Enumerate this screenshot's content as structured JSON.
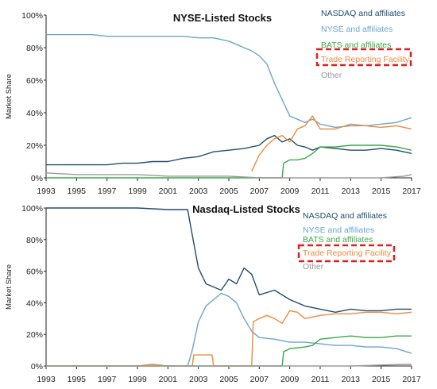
{
  "chart_data": [
    {
      "type": "line",
      "title": "NYSE-Listed  Stocks",
      "ylabel": "Market Share",
      "xlabel": "",
      "xlim": [
        1993,
        2017
      ],
      "ylim": [
        0,
        100
      ],
      "x_ticks": [
        "1993",
        "1995",
        "1997",
        "1999",
        "2001",
        "2003",
        "2005",
        "2007",
        "2009",
        "2011",
        "2013",
        "2015",
        "2017"
      ],
      "y_ticks": [
        "0%",
        "20%",
        "40%",
        "60%",
        "80%",
        "100%"
      ],
      "legend_position": "top-right",
      "highlighted_legend_entry": "Trade Reporting Facility",
      "series": [
        {
          "name": "NASDAQ and affiliates",
          "color": "#1f4e6b",
          "x": [
            1993,
            1994,
            1995,
            1996,
            1997,
            1998,
            1999,
            2000,
            2001,
            2002,
            2003,
            2004,
            2005,
            2006,
            2007,
            2007.5,
            2008,
            2008.5,
            2009,
            2009.5,
            2010,
            2010.5,
            2011,
            2012,
            2013,
            2014,
            2015,
            2016,
            2017
          ],
          "y": [
            8,
            8,
            8,
            8,
            8,
            9,
            9,
            10,
            10,
            12,
            13,
            16,
            17,
            18,
            20,
            24,
            26,
            22,
            24,
            20,
            19,
            17,
            19,
            18,
            17,
            17,
            18,
            17,
            15
          ]
        },
        {
          "name": "NYSE and affiliates",
          "color": "#6aa6cc",
          "x": [
            1993,
            1994,
            1995,
            1996,
            1997,
            1998,
            1999,
            2000,
            2001,
            2002,
            2003,
            2004,
            2005,
            2006,
            2006.5,
            2007,
            2007.5,
            2008,
            2008.5,
            2009,
            2009.5,
            2010,
            2010.5,
            2011,
            2012,
            2013,
            2014,
            2015,
            2016,
            2017
          ],
          "y": [
            88,
            88,
            88,
            88,
            87,
            87,
            87,
            87,
            87,
            87,
            86,
            86,
            84,
            80,
            78,
            75,
            70,
            58,
            48,
            38,
            36,
            34,
            36,
            33,
            31,
            32,
            32,
            33,
            34,
            37
          ]
        },
        {
          "name": "BATS and affiliates",
          "color": "#3aa84a",
          "x": [
            1993,
            2008.5,
            2008.6,
            2009,
            2009.5,
            2010,
            2010.5,
            2011,
            2012,
            2013,
            2014,
            2015,
            2016,
            2017
          ],
          "y": [
            0,
            0,
            9,
            11,
            11,
            12,
            15,
            19,
            19,
            20,
            20,
            20,
            19,
            17
          ]
        },
        {
          "name": "Trade Reporting Facility",
          "color": "#f08a3c",
          "x": [
            2006.5,
            2007,
            2007.5,
            2008,
            2008.5,
            2009,
            2009.5,
            2010,
            2010.5,
            2011,
            2012,
            2013,
            2014,
            2015,
            2016,
            2017
          ],
          "y": [
            4,
            14,
            20,
            24,
            26,
            22,
            30,
            32,
            38,
            30,
            30,
            33,
            32,
            31,
            32,
            30
          ]
        },
        {
          "name": "Other",
          "color": "#9a9a9a",
          "x": [
            1993,
            1995,
            1997,
            1999,
            2001,
            2003,
            2005,
            2007,
            2009,
            2011,
            2013,
            2015,
            2016.5,
            2017
          ],
          "y": [
            3,
            2,
            2,
            2,
            1,
            1,
            1,
            0,
            0,
            0,
            0,
            0,
            1,
            2
          ]
        }
      ]
    },
    {
      "type": "line",
      "title": "Nasdaq-Listed  Stocks",
      "ylabel": "Market Share",
      "xlabel": "",
      "xlim": [
        1993,
        2017
      ],
      "ylim": [
        0,
        100
      ],
      "x_ticks": [
        "1993",
        "1995",
        "1997",
        "1999",
        "2001",
        "2003",
        "2005",
        "2007",
        "2009",
        "2011",
        "2013",
        "2015",
        "2017"
      ],
      "y_ticks": [
        "0%",
        "20%",
        "40%",
        "60%",
        "80%",
        "100%"
      ],
      "legend_position": "top-right",
      "highlighted_legend_entry": "Trade Reporting Facility",
      "series": [
        {
          "name": "NASDAQ and affiliates",
          "color": "#1f4e6b",
          "x": [
            1993,
            1995,
            1997,
            1999,
            2001,
            2002.3,
            2002.5,
            2003,
            2003.5,
            2004,
            2004.5,
            2005,
            2005.5,
            2006,
            2006.5,
            2007,
            2008,
            2009,
            2010,
            2011,
            2012,
            2013,
            2014,
            2015,
            2016,
            2017
          ],
          "y": [
            100,
            100,
            100,
            100,
            99,
            99,
            88,
            62,
            52,
            50,
            48,
            55,
            52,
            62,
            58,
            45,
            48,
            42,
            38,
            36,
            34,
            36,
            35,
            35,
            36,
            36
          ]
        },
        {
          "name": "NYSE and affiliates",
          "color": "#6aa6cc",
          "x": [
            1993,
            2002.3,
            2002.6,
            2003,
            2003.5,
            2004,
            2004.5,
            2005,
            2005.5,
            2006,
            2006.5,
            2007,
            2008,
            2009,
            2010,
            2011,
            2012,
            2013,
            2014,
            2015,
            2016,
            2017
          ],
          "y": [
            0,
            0,
            10,
            28,
            38,
            42,
            46,
            44,
            40,
            30,
            22,
            18,
            17,
            15,
            15,
            14,
            13,
            13,
            12,
            12,
            11,
            8
          ]
        },
        {
          "name": "BATS and affiliates",
          "color": "#3aa84a",
          "x": [
            1993,
            2008.5,
            2008.6,
            2009,
            2010,
            2010.5,
            2011,
            2012,
            2013,
            2014,
            2015,
            2016,
            2017
          ],
          "y": [
            0,
            0,
            9,
            11,
            12,
            13,
            17,
            18,
            19,
            18,
            18,
            19,
            19
          ]
        },
        {
          "name": "Trade Reporting Facility",
          "color": "#f08a3c",
          "x": [
            1993,
            2002.6,
            2002.7,
            2003.9,
            2004,
            2006.5,
            2006.6,
            2007,
            2007.5,
            2008,
            2008.5,
            2009,
            2009.5,
            2010,
            2011,
            2012,
            2013,
            2014,
            2015,
            2016,
            2017
          ],
          "y": [
            0,
            0,
            7,
            7,
            0,
            0,
            28,
            30,
            32,
            30,
            27,
            35,
            34,
            30,
            32,
            33,
            33,
            34,
            34,
            33,
            34
          ]
        },
        {
          "name": "Other",
          "color": "#9a9a9a",
          "x": [
            1993,
            1999,
            2000,
            2001,
            2005,
            2009,
            2013,
            2016.5,
            2017
          ],
          "y": [
            0,
            0,
            1,
            0,
            0,
            0,
            0,
            1,
            1
          ]
        }
      ]
    }
  ]
}
